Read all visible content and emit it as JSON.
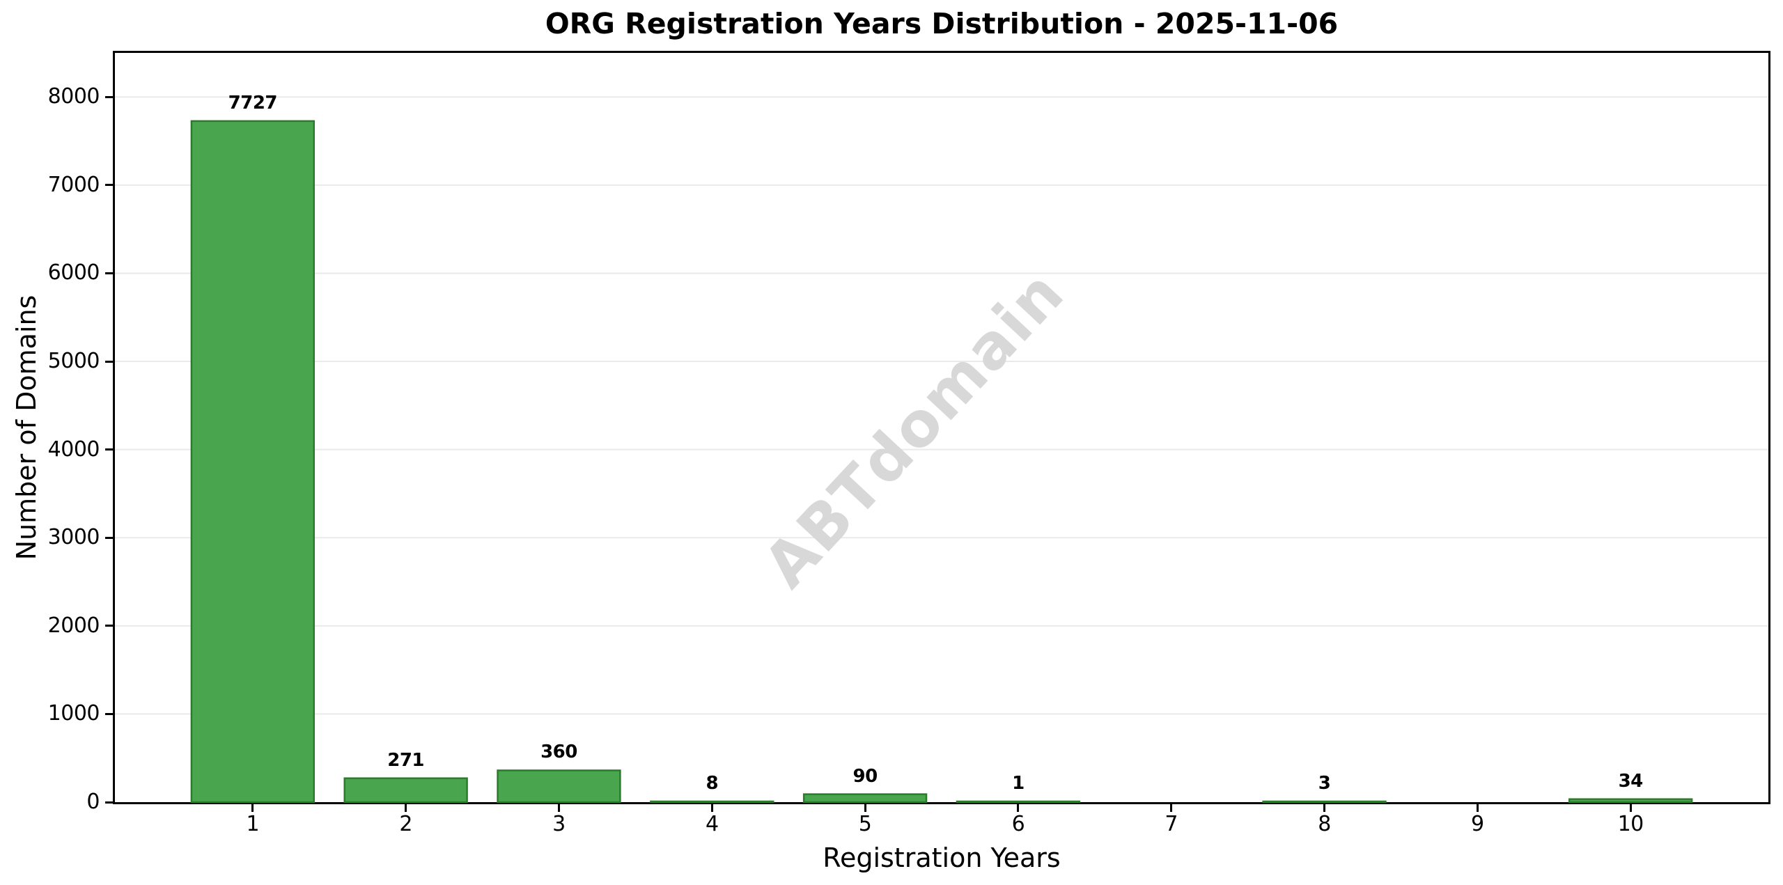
{
  "watermark": "ABTdomain",
  "chart_data": {
    "type": "bar",
    "title": "ORG Registration Years Distribution - 2025-11-06",
    "xlabel": "Registration Years",
    "ylabel": "Number of Domains",
    "categories": [
      "1",
      "2",
      "3",
      "4",
      "5",
      "6",
      "7",
      "8",
      "9",
      "10"
    ],
    "values": [
      7727,
      271,
      360,
      8,
      90,
      1,
      0,
      3,
      0,
      34
    ],
    "bar_labels": [
      "7727",
      "271",
      "360",
      "8",
      "90",
      "1",
      "",
      "3",
      "",
      "34"
    ],
    "ylim": [
      0,
      8500
    ],
    "xlim": [
      -0.9,
      9.9
    ],
    "yticks": [
      0,
      1000,
      2000,
      3000,
      4000,
      5000,
      6000,
      7000,
      8000
    ],
    "bar_width_fraction": 0.8,
    "grid": "horizontal",
    "legend": "none",
    "colors": {
      "bar_fill": "#4aa64e",
      "bar_edge": "#2c7b2c",
      "grid": "#eaeaea",
      "axis": "#000000",
      "text": "#000000",
      "watermark": "#d8d8d8",
      "background": "#ffffff"
    }
  }
}
